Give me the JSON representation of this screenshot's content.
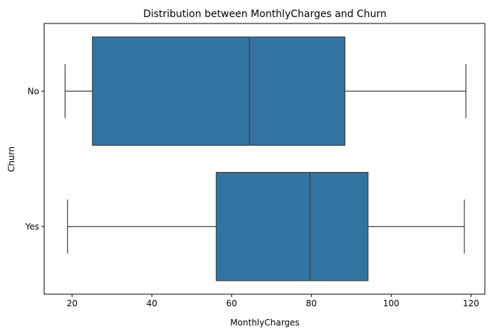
{
  "chart_data": {
    "type": "boxplot",
    "title": "Distribution between MonthlyCharges and Churn",
    "xlabel": "MonthlyCharges",
    "ylabel": "Churn",
    "orientation": "horizontal",
    "xlim": [
      13.0,
      123.5
    ],
    "xticks": [
      20,
      40,
      60,
      80,
      100,
      120
    ],
    "xtick_labels": [
      "20",
      "40",
      "60",
      "80",
      "100",
      "120"
    ],
    "grid": false,
    "legend": "none",
    "box_color": "#3274a1",
    "line_color": "#3d3d3d",
    "categories": [
      "No",
      "Yes"
    ],
    "boxes": [
      {
        "category": "No",
        "whisker_low": 18.25,
        "q1": 25.1,
        "median": 64.45,
        "q3": 88.4,
        "whisker_high": 118.75
      },
      {
        "category": "Yes",
        "whisker_low": 18.85,
        "q1": 56.15,
        "median": 79.65,
        "q3": 94.2,
        "whisker_high": 118.35
      }
    ]
  }
}
